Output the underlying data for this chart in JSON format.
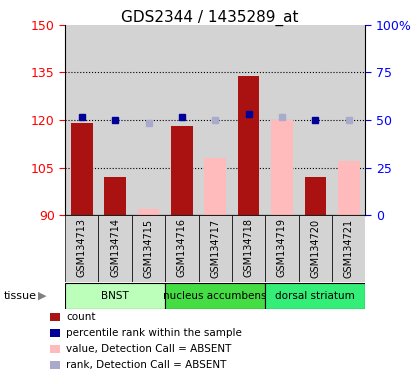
{
  "title": "GDS2344 / 1435289_at",
  "samples": [
    "GSM134713",
    "GSM134714",
    "GSM134715",
    "GSM134716",
    "GSM134717",
    "GSM134718",
    "GSM134719",
    "GSM134720",
    "GSM134721"
  ],
  "count_values": [
    119,
    102,
    null,
    118,
    null,
    134,
    null,
    102,
    null
  ],
  "absent_value": [
    null,
    null,
    92,
    null,
    108,
    null,
    120,
    null,
    107
  ],
  "blue_dot_value": [
    121,
    120,
    null,
    121,
    null,
    122,
    null,
    120,
    null
  ],
  "light_blue_dot": [
    null,
    null,
    119,
    null,
    120,
    null,
    121,
    null,
    120
  ],
  "tissues": [
    {
      "label": "BNST",
      "start": 0,
      "end": 3,
      "color": "#BBFFBB"
    },
    {
      "label": "nucleus accumbens",
      "start": 3,
      "end": 6,
      "color": "#44DD44"
    },
    {
      "label": "dorsal striatum",
      "start": 6,
      "end": 9,
      "color": "#33EE77"
    }
  ],
  "ylim_left": [
    90,
    150
  ],
  "ylim_right": [
    0,
    100
  ],
  "yticks_left": [
    90,
    105,
    120,
    135,
    150
  ],
  "yticks_right": [
    0,
    25,
    50,
    75,
    100
  ],
  "yticklabels_right": [
    "0",
    "25",
    "50",
    "75",
    "100%"
  ],
  "bar_color": "#AA1111",
  "absent_bar_color": "#FFBBBB",
  "dot_color": "#000099",
  "light_dot_color": "#AAAACC",
  "bg_color": "#D3D3D3",
  "legend_items": [
    {
      "color": "#AA1111",
      "label": "count"
    },
    {
      "color": "#000099",
      "label": "percentile rank within the sample"
    },
    {
      "color": "#FFBBBB",
      "label": "value, Detection Call = ABSENT"
    },
    {
      "color": "#AAAACC",
      "label": "rank, Detection Call = ABSENT"
    }
  ]
}
